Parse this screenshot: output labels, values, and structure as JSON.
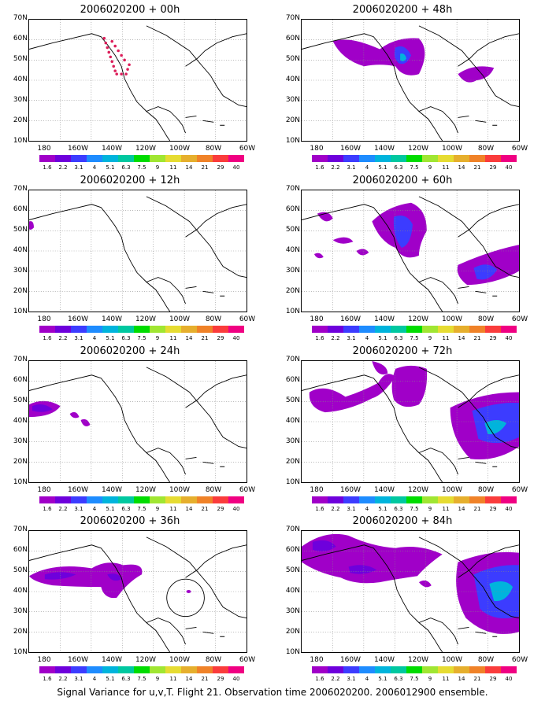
{
  "panels": [
    {
      "title": "2006020200 + 00h"
    },
    {
      "title": "2006020200 + 48h"
    },
    {
      "title": "2006020200 + 12h"
    },
    {
      "title": "2006020200 + 60h"
    },
    {
      "title": "2006020200 + 24h"
    },
    {
      "title": "2006020200 + 72h"
    },
    {
      "title": "2006020200 + 36h"
    },
    {
      "title": "2006020200 + 84h"
    }
  ],
  "lat_labels": [
    "70N",
    "60N",
    "50N",
    "40N",
    "30N",
    "20N",
    "10N"
  ],
  "lon_labels": [
    "180",
    "160W",
    "140W",
    "120W",
    "100W",
    "80W",
    "60W"
  ],
  "colorbar": {
    "labels": [
      "1.6",
      "2.2",
      "3.1",
      "4",
      "5.1",
      "6.3",
      "7.5",
      "9",
      "11",
      "14",
      "21",
      "29",
      "40"
    ],
    "colors": [
      "#a000c8",
      "#6e00dc",
      "#3c3cff",
      "#1e8cff",
      "#00b4dc",
      "#00c8a0",
      "#00dc00",
      "#a0e632",
      "#e6dc32",
      "#e6af2d",
      "#f08228",
      "#fa3c3c",
      "#f00082"
    ]
  },
  "caption": "Signal Variance for u,v,T. Flight 21. Observation time 2006020200. 2006012900 ensemble."
}
